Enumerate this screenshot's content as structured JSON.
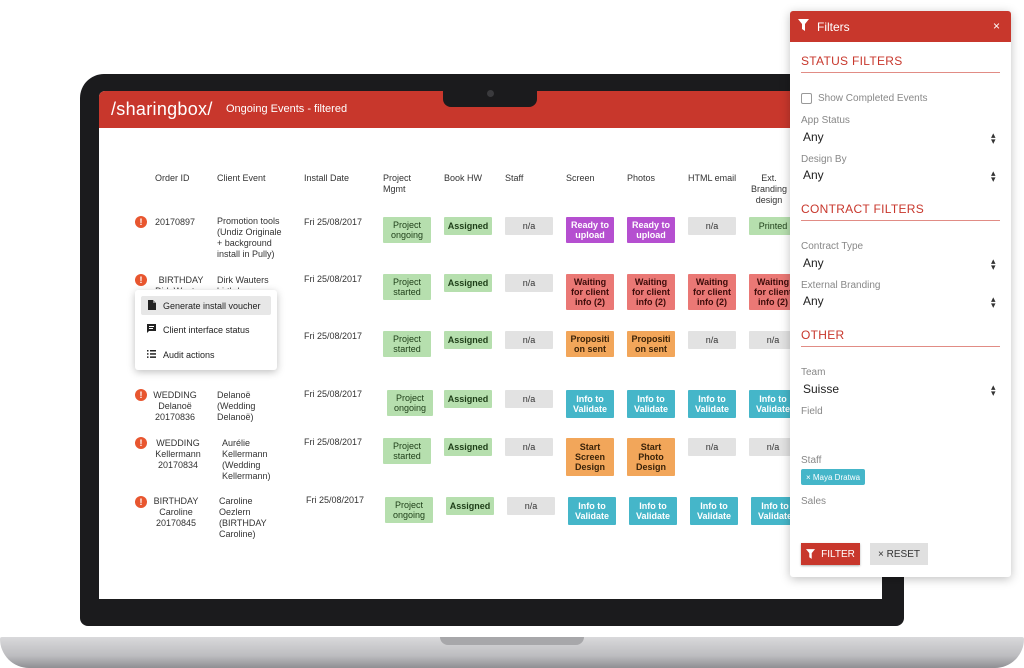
{
  "app": {
    "logo": "/sharingbox/",
    "title": "Ongoing Events - filtered"
  },
  "columns": [
    "Order ID",
    "Client Event",
    "Install Date",
    "Project Mgmt",
    "Book HW",
    "Staff",
    "Screen",
    "Photos",
    "HTML email",
    "Ext. Branding design"
  ],
  "rows": [
    {
      "order_id": "20170897",
      "client_event": "Promotion tools (Undiz Originale + background install in Pully)",
      "install_date": "Fri 25/08/2017",
      "project_mgmt": "Project ongoing",
      "book_hw": "Assigned",
      "staff": "n/a",
      "screen": "Ready to upload",
      "photos": "Ready to upload",
      "html_email": "n/a",
      "ext_branding": "Printed"
    },
    {
      "order_id": "BIRTHDAY Dirk Wauters",
      "client_event": "Dirk Wauters birthday",
      "install_date": "Fri 25/08/2017",
      "project_mgmt": "Project started",
      "book_hw": "Assigned",
      "staff": "n/a",
      "screen": "Waiting for client info (2)",
      "photos": "Waiting for client info (2)",
      "html_email": "Waiting for client info (2)",
      "ext_branding": "Waiting for client info (2)"
    },
    {
      "order_id": "",
      "client_event": "",
      "install_date": "Fri 25/08/2017",
      "project_mgmt": "Project started",
      "book_hw": "Assigned",
      "staff": "n/a",
      "screen": "Proposition sent",
      "photos": "Proposition sent",
      "html_email": "n/a",
      "ext_branding": "n/a"
    },
    {
      "order_id": "WEDDING Delanoë 20170836",
      "client_event": "Delanoë (Wedding Delanoë)",
      "install_date": "Fri 25/08/2017",
      "project_mgmt": "Project ongoing",
      "book_hw": "Assigned",
      "staff": "n/a",
      "screen": "Info to Validate",
      "photos": "Info to Validate",
      "html_email": "Info to Validate",
      "ext_branding": "Info to Validate"
    },
    {
      "order_id": "WEDDING Kellermann 20170834",
      "client_event": "Aurélie Kellermann (Wedding Kellermann)",
      "install_date": "Fri 25/08/2017",
      "project_mgmt": "Project started",
      "book_hw": "Assigned",
      "staff": "n/a",
      "screen": "Start Screen Design",
      "photos": "Start Photo Design",
      "html_email": "n/a",
      "ext_branding": "n/a"
    },
    {
      "order_id": "BIRTHDAY Caroline 20170845",
      "client_event": "Caroline Oezlern (BIRTHDAY Caroline)",
      "install_date": "Fri 25/08/2017",
      "project_mgmt": "Project ongoing",
      "book_hw": "Assigned",
      "staff": "n/a",
      "screen": "Info to Validate",
      "photos": "Info to Validate",
      "html_email": "Info to Validate",
      "ext_branding": "Info to Validate"
    }
  ],
  "context_menu": {
    "items": [
      {
        "label": "Generate install voucher",
        "icon": "document-icon"
      },
      {
        "label": "Client interface status",
        "icon": "message-icon"
      },
      {
        "label": "Audit actions",
        "icon": "list-icon"
      }
    ]
  },
  "filters": {
    "title": "Filters",
    "close": "×",
    "status_section": "STATUS FILTERS",
    "show_completed": "Show Completed Events",
    "app_status_label": "App Status",
    "app_status_value": "Any",
    "design_by_label": "Design By",
    "design_by_value": "Any",
    "contract_section": "CONTRACT FILTERS",
    "contract_type_label": "Contract Type",
    "contract_type_value": "Any",
    "ext_branding_label": "External Branding",
    "ext_branding_value": "Any",
    "other_section": "OTHER",
    "team_label": "Team",
    "team_value": "Suisse",
    "field_label": "Field",
    "staff_label": "Staff",
    "staff_chip": "× Maya Dratwa",
    "sales_label": "Sales",
    "filter_button": "FILTER",
    "reset_button": "× RESET"
  },
  "colors": {
    "brand": "#c8372c",
    "alert": "#e8562f",
    "teal": "#45b6c9",
    "green": "#b6dfae"
  }
}
